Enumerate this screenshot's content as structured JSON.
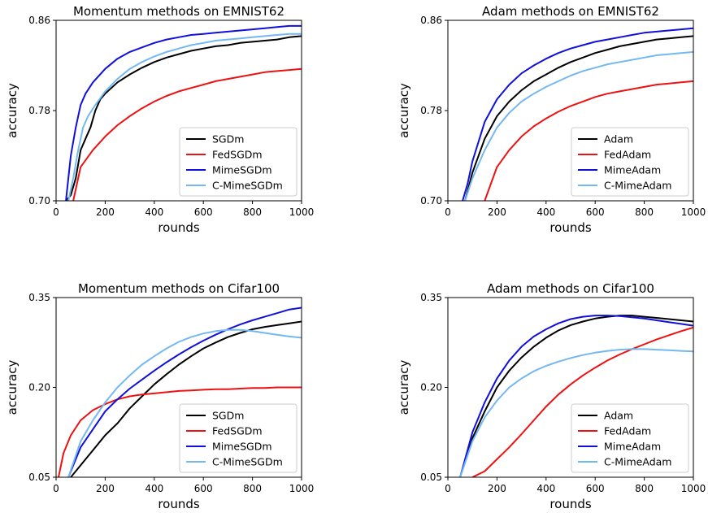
{
  "chart_data": [
    {
      "type": "line",
      "title": "Momentum methods on EMNIST62",
      "xlabel": "rounds",
      "ylabel": "accuracy",
      "xlim": [
        0,
        1000
      ],
      "ylim": [
        0.7,
        0.86
      ],
      "xticks": [
        "0",
        "200",
        "400",
        "600",
        "800",
        "1000"
      ],
      "yticks": [
        "0.70",
        "0.78",
        "0.86"
      ],
      "legend_position": "lower-right",
      "grid": false,
      "series": [
        {
          "name": "SGDm",
          "color": "#000000",
          "x": [
            40,
            60,
            80,
            100,
            120,
            140,
            160,
            180,
            200,
            250,
            300,
            350,
            400,
            450,
            500,
            550,
            600,
            650,
            700,
            750,
            800,
            850,
            900,
            950,
            1000
          ],
          "values": [
            0.7,
            0.705,
            0.72,
            0.745,
            0.755,
            0.765,
            0.78,
            0.79,
            0.795,
            0.805,
            0.812,
            0.818,
            0.823,
            0.827,
            0.83,
            0.833,
            0.835,
            0.837,
            0.838,
            0.84,
            0.841,
            0.842,
            0.843,
            0.845,
            0.846
          ]
        },
        {
          "name": "FedSGDm",
          "color": "#ee1111",
          "x": [
            70,
            100,
            150,
            200,
            250,
            300,
            350,
            400,
            450,
            500,
            550,
            600,
            650,
            700,
            750,
            800,
            850,
            900,
            950,
            1000
          ],
          "values": [
            0.7,
            0.73,
            0.745,
            0.757,
            0.767,
            0.775,
            0.782,
            0.788,
            0.793,
            0.797,
            0.8,
            0.803,
            0.806,
            0.808,
            0.81,
            0.812,
            0.814,
            0.815,
            0.816,
            0.817
          ]
        },
        {
          "name": "MimeSGDm",
          "color": "#1010dd",
          "x": [
            40,
            60,
            80,
            100,
            120,
            150,
            200,
            250,
            300,
            350,
            400,
            450,
            500,
            550,
            600,
            650,
            700,
            750,
            800,
            850,
            900,
            950,
            1000
          ],
          "values": [
            0.7,
            0.74,
            0.765,
            0.785,
            0.795,
            0.805,
            0.817,
            0.826,
            0.832,
            0.836,
            0.84,
            0.843,
            0.845,
            0.847,
            0.848,
            0.849,
            0.85,
            0.851,
            0.852,
            0.853,
            0.854,
            0.855,
            0.855
          ]
        },
        {
          "name": "C-MimeSGDm",
          "color": "#74b8f2",
          "x": [
            50,
            70,
            90,
            110,
            130,
            160,
            200,
            250,
            300,
            350,
            400,
            450,
            500,
            550,
            600,
            650,
            700,
            750,
            800,
            850,
            900,
            950,
            1000
          ],
          "values": [
            0.7,
            0.72,
            0.745,
            0.765,
            0.775,
            0.785,
            0.797,
            0.808,
            0.817,
            0.823,
            0.828,
            0.832,
            0.835,
            0.838,
            0.84,
            0.842,
            0.843,
            0.844,
            0.845,
            0.846,
            0.847,
            0.848,
            0.848
          ]
        }
      ]
    },
    {
      "type": "line",
      "title": "Adam methods on EMNIST62",
      "xlabel": "rounds",
      "ylabel": "accuracy",
      "xlim": [
        0,
        1000
      ],
      "ylim": [
        0.7,
        0.86
      ],
      "xticks": [
        "0",
        "200",
        "400",
        "600",
        "800",
        "1000"
      ],
      "yticks": [
        "0.70",
        "0.78",
        "0.86"
      ],
      "legend_position": "lower-right",
      "grid": false,
      "series": [
        {
          "name": "Adam",
          "color": "#000000",
          "x": [
            70,
            100,
            150,
            200,
            250,
            300,
            350,
            400,
            450,
            500,
            550,
            600,
            650,
            700,
            750,
            800,
            850,
            900,
            950,
            1000
          ],
          "values": [
            0.7,
            0.725,
            0.755,
            0.775,
            0.788,
            0.798,
            0.806,
            0.812,
            0.818,
            0.823,
            0.827,
            0.831,
            0.834,
            0.837,
            0.839,
            0.841,
            0.843,
            0.844,
            0.845,
            0.846
          ]
        },
        {
          "name": "FedAdam",
          "color": "#ee1111",
          "x": [
            150,
            200,
            250,
            300,
            350,
            400,
            450,
            500,
            550,
            600,
            650,
            700,
            750,
            800,
            850,
            900,
            950,
            1000
          ],
          "values": [
            0.7,
            0.73,
            0.745,
            0.757,
            0.766,
            0.773,
            0.779,
            0.784,
            0.788,
            0.792,
            0.795,
            0.797,
            0.799,
            0.801,
            0.803,
            0.804,
            0.805,
            0.806
          ]
        },
        {
          "name": "MimeAdam",
          "color": "#1010dd",
          "x": [
            60,
            80,
            100,
            150,
            200,
            250,
            300,
            350,
            400,
            450,
            500,
            550,
            600,
            650,
            700,
            750,
            800,
            850,
            900,
            950,
            1000
          ],
          "values": [
            0.7,
            0.715,
            0.735,
            0.77,
            0.79,
            0.803,
            0.813,
            0.82,
            0.826,
            0.831,
            0.835,
            0.838,
            0.841,
            0.843,
            0.845,
            0.847,
            0.849,
            0.85,
            0.851,
            0.852,
            0.853
          ]
        },
        {
          "name": "C-MimeAdam",
          "color": "#74b8f2",
          "x": [
            70,
            100,
            150,
            200,
            250,
            300,
            350,
            400,
            450,
            500,
            550,
            600,
            650,
            700,
            750,
            800,
            850,
            900,
            950,
            1000
          ],
          "values": [
            0.7,
            0.72,
            0.745,
            0.765,
            0.778,
            0.788,
            0.795,
            0.801,
            0.806,
            0.811,
            0.815,
            0.818,
            0.821,
            0.823,
            0.825,
            0.827,
            0.829,
            0.83,
            0.831,
            0.832
          ]
        }
      ]
    },
    {
      "type": "line",
      "title": "Momentum methods on Cifar100",
      "xlabel": "rounds",
      "ylabel": "accuracy",
      "xlim": [
        0,
        1000
      ],
      "ylim": [
        0.05,
        0.35
      ],
      "xticks": [
        "0",
        "200",
        "400",
        "600",
        "800",
        "1000"
      ],
      "yticks": [
        "0.05",
        "0.20",
        "0.35"
      ],
      "legend_position": "lower-right",
      "grid": false,
      "series": [
        {
          "name": "SGDm",
          "color": "#000000",
          "x": [
            60,
            100,
            150,
            200,
            250,
            300,
            350,
            400,
            450,
            500,
            550,
            600,
            650,
            700,
            750,
            800,
            850,
            900,
            950,
            1000
          ],
          "values": [
            0.05,
            0.07,
            0.095,
            0.12,
            0.14,
            0.165,
            0.185,
            0.205,
            0.222,
            0.238,
            0.252,
            0.265,
            0.275,
            0.284,
            0.291,
            0.297,
            0.301,
            0.304,
            0.307,
            0.31
          ]
        },
        {
          "name": "FedSGDm",
          "color": "#ee1111",
          "x": [
            10,
            30,
            60,
            100,
            150,
            200,
            250,
            300,
            350,
            400,
            450,
            500,
            550,
            600,
            650,
            700,
            750,
            800,
            850,
            900,
            950,
            1000
          ],
          "values": [
            0.05,
            0.09,
            0.12,
            0.145,
            0.162,
            0.172,
            0.18,
            0.185,
            0.188,
            0.19,
            0.192,
            0.194,
            0.195,
            0.196,
            0.197,
            0.197,
            0.198,
            0.199,
            0.199,
            0.2,
            0.2,
            0.2
          ]
        },
        {
          "name": "MimeSGDm",
          "color": "#1010dd",
          "x": [
            50,
            100,
            150,
            200,
            250,
            300,
            350,
            400,
            450,
            500,
            550,
            600,
            650,
            700,
            750,
            800,
            850,
            900,
            950,
            1000
          ],
          "values": [
            0.05,
            0.1,
            0.13,
            0.16,
            0.18,
            0.198,
            0.213,
            0.228,
            0.242,
            0.255,
            0.267,
            0.278,
            0.288,
            0.297,
            0.305,
            0.312,
            0.318,
            0.324,
            0.33,
            0.333
          ]
        },
        {
          "name": "C-MimeSGDm",
          "color": "#74b8f2",
          "x": [
            50,
            100,
            150,
            200,
            250,
            300,
            350,
            400,
            450,
            500,
            550,
            600,
            650,
            700,
            750,
            800,
            850,
            900,
            950,
            1000
          ],
          "values": [
            0.05,
            0.11,
            0.145,
            0.175,
            0.2,
            0.22,
            0.238,
            0.252,
            0.265,
            0.276,
            0.284,
            0.29,
            0.294,
            0.296,
            0.296,
            0.294,
            0.291,
            0.288,
            0.285,
            0.283
          ]
        }
      ]
    },
    {
      "type": "line",
      "title": "Adam methods on Cifar100",
      "xlabel": "rounds",
      "ylabel": "accuracy",
      "xlim": [
        0,
        1000
      ],
      "ylim": [
        0.05,
        0.35
      ],
      "xticks": [
        "0",
        "200",
        "400",
        "600",
        "800",
        "1000"
      ],
      "yticks": [
        "0.05",
        "0.20",
        "0.35"
      ],
      "legend_position": "lower-right",
      "grid": false,
      "series": [
        {
          "name": "Adam",
          "color": "#000000",
          "x": [
            50,
            100,
            150,
            200,
            250,
            300,
            350,
            400,
            450,
            500,
            550,
            600,
            650,
            700,
            750,
            800,
            850,
            900,
            950,
            1000
          ],
          "values": [
            0.05,
            0.115,
            0.16,
            0.2,
            0.228,
            0.25,
            0.268,
            0.283,
            0.295,
            0.304,
            0.31,
            0.315,
            0.318,
            0.32,
            0.32,
            0.318,
            0.316,
            0.314,
            0.312,
            0.31
          ]
        },
        {
          "name": "FedAdam",
          "color": "#ee1111",
          "x": [
            100,
            150,
            200,
            250,
            300,
            350,
            400,
            450,
            500,
            550,
            600,
            650,
            700,
            750,
            800,
            850,
            900,
            950,
            1000
          ],
          "values": [
            0.05,
            0.06,
            0.08,
            0.1,
            0.122,
            0.145,
            0.168,
            0.188,
            0.205,
            0.22,
            0.233,
            0.245,
            0.255,
            0.264,
            0.272,
            0.28,
            0.287,
            0.294,
            0.3
          ]
        },
        {
          "name": "MimeAdam",
          "color": "#1010dd",
          "x": [
            50,
            100,
            150,
            200,
            250,
            300,
            350,
            400,
            450,
            500,
            550,
            600,
            650,
            700,
            750,
            800,
            850,
            900,
            950,
            1000
          ],
          "values": [
            0.05,
            0.125,
            0.175,
            0.215,
            0.245,
            0.268,
            0.285,
            0.297,
            0.307,
            0.314,
            0.318,
            0.32,
            0.32,
            0.319,
            0.317,
            0.315,
            0.312,
            0.309,
            0.306,
            0.303
          ]
        },
        {
          "name": "C-MimeAdam",
          "color": "#74b8f2",
          "x": [
            50,
            100,
            150,
            200,
            250,
            300,
            350,
            400,
            450,
            500,
            550,
            600,
            650,
            700,
            750,
            800,
            850,
            900,
            950,
            1000
          ],
          "values": [
            0.05,
            0.11,
            0.15,
            0.178,
            0.2,
            0.215,
            0.227,
            0.236,
            0.243,
            0.249,
            0.254,
            0.258,
            0.261,
            0.263,
            0.264,
            0.264,
            0.263,
            0.262,
            0.261,
            0.26
          ]
        }
      ]
    }
  ]
}
